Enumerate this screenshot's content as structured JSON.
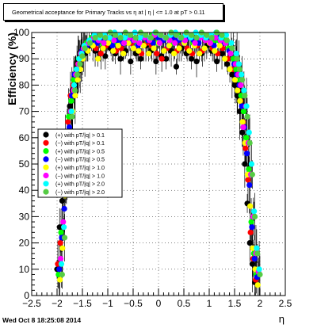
{
  "chart_data": {
    "type": "scatter",
    "title": "Geometrical acceptance for Primary Tracks vs   η at | η | <= 1.0 at pT > 0.11",
    "xlabel": "η",
    "ylabel": "Efficiency (%)",
    "xlim": [
      -2.5,
      2.5
    ],
    "ylim": [
      0,
      100
    ],
    "xticks": [
      -2.5,
      -2,
      -1.5,
      -1,
      -0.5,
      0,
      0.5,
      1,
      1.5,
      2,
      2.5
    ],
    "xtick_labels": [
      "−2.5",
      "−2",
      "−1.5",
      "−1",
      "−0.5",
      "0",
      "0.5",
      "1",
      "1.5",
      "2",
      "2.5"
    ],
    "yticks": [
      0,
      10,
      20,
      30,
      40,
      50,
      60,
      70,
      80,
      90,
      100
    ],
    "ytick_labels": [
      "0",
      "10",
      "20",
      "30",
      "40",
      "50",
      "60",
      "70",
      "80",
      "90",
      "100"
    ],
    "grid": true,
    "legend_position": "middle-left",
    "x": [
      -1.95,
      -1.9,
      -1.85,
      -1.8,
      -1.75,
      -1.7,
      -1.65,
      -1.6,
      -1.55,
      -1.5,
      -1.4,
      -1.3,
      -1.2,
      -1.1,
      -1.0,
      -0.9,
      -0.8,
      -0.7,
      -0.6,
      -0.5,
      -0.4,
      -0.3,
      -0.2,
      -0.1,
      0.0,
      0.1,
      0.2,
      0.3,
      0.4,
      0.5,
      0.6,
      0.7,
      0.8,
      0.9,
      1.0,
      1.1,
      1.2,
      1.3,
      1.4,
      1.5,
      1.55,
      1.6,
      1.65,
      1.7,
      1.75,
      1.8,
      1.85,
      1.9,
      1.95
    ],
    "series": [
      {
        "name": "(+) with pT/|q| > 0.1",
        "color": "#000000",
        "values": [
          10,
          26,
          36,
          52,
          62,
          72,
          78,
          80,
          86,
          88,
          92,
          95,
          93,
          92,
          91,
          94,
          92,
          90,
          93,
          89,
          92,
          90,
          95,
          93,
          89,
          91,
          90,
          93,
          87,
          94,
          92,
          90,
          89,
          92,
          95,
          93,
          89,
          92,
          88,
          84,
          80,
          76,
          70,
          62,
          50,
          35,
          20,
          12,
          5
        ]
      },
      {
        "name": "(−) with pT/|q| > 0.1",
        "color": "#ff0000",
        "values": [
          12,
          20,
          40,
          58,
          66,
          76,
          80,
          84,
          88,
          90,
          94,
          96,
          94,
          92,
          95,
          96,
          93,
          94,
          97,
          96,
          94,
          92,
          96,
          95,
          92,
          90,
          94,
          97,
          93,
          96,
          94,
          92,
          95,
          93,
          97,
          94,
          92,
          94,
          90,
          86,
          82,
          78,
          74,
          66,
          56,
          44,
          24,
          14,
          6
        ]
      },
      {
        "name": "(+) with pT/|q| > 0.5",
        "color": "#00ff00",
        "values": [
          8,
          24,
          44,
          56,
          68,
          74,
          82,
          86,
          90,
          92,
          96,
          98,
          97,
          96,
          98,
          97,
          96,
          98,
          99,
          97,
          96,
          98,
          97,
          99,
          96,
          97,
          98,
          96,
          99,
          97,
          98,
          96,
          97,
          99,
          98,
          96,
          97,
          98,
          94,
          90,
          86,
          82,
          76,
          70,
          60,
          48,
          28,
          16,
          8
        ]
      },
      {
        "name": "(−) with pT/|q| > 0.5",
        "color": "#0000ff",
        "values": [
          10,
          22,
          33,
          54,
          64,
          76,
          84,
          86,
          90,
          93,
          95,
          97,
          96,
          98,
          97,
          95,
          97,
          96,
          98,
          97,
          95,
          98,
          97,
          96,
          98,
          97,
          95,
          98,
          97,
          96,
          98,
          97,
          96,
          98,
          97,
          95,
          98,
          96,
          93,
          88,
          84,
          80,
          72,
          64,
          54,
          42,
          26,
          14,
          7
        ]
      },
      {
        "name": "(+) with pT/|q| > 1.0",
        "color": "#ffff00",
        "values": [
          6,
          18,
          38,
          50,
          60,
          70,
          76,
          82,
          86,
          90,
          93,
          95,
          90,
          94,
          96,
          93,
          95,
          92,
          96,
          94,
          93,
          95,
          92,
          94,
          96,
          93,
          95,
          92,
          94,
          96,
          93,
          95,
          92,
          94,
          96,
          93,
          95,
          90,
          86,
          82,
          78,
          74,
          66,
          58,
          46,
          34,
          18,
          10,
          4
        ]
      },
      {
        "name": "(−) with pT/|q| > 1.0",
        "color": "#ff00ff",
        "values": [
          14,
          28,
          46,
          60,
          70,
          78,
          84,
          88,
          92,
          94,
          96,
          98,
          97,
          96,
          98,
          97,
          99,
          96,
          98,
          97,
          96,
          98,
          97,
          99,
          96,
          98,
          97,
          96,
          98,
          97,
          99,
          96,
          98,
          97,
          96,
          98,
          97,
          96,
          92,
          88,
          84,
          80,
          64,
          72,
          58,
          46,
          30,
          16,
          9
        ]
      },
      {
        "name": "(+) with pT/|q| > 2.0",
        "color": "#00ffff",
        "values": [
          12,
          26,
          42,
          58,
          70,
          80,
          86,
          90,
          92,
          95,
          97,
          99,
          98,
          99,
          98,
          100,
          99,
          98,
          99,
          100,
          98,
          99,
          98,
          100,
          99,
          98,
          99,
          100,
          98,
          99,
          98,
          100,
          99,
          98,
          99,
          100,
          98,
          99,
          96,
          92,
          88,
          84,
          78,
          72,
          62,
          50,
          32,
          18,
          10
        ]
      },
      {
        "name": "(−) with pT/|q| > 2.0",
        "color": "#55cc44",
        "values": [
          8,
          22,
          40,
          56,
          68,
          78,
          84,
          88,
          91,
          94,
          96,
          98,
          99,
          98,
          100,
          99,
          98,
          100,
          99,
          98,
          100,
          99,
          98,
          100,
          99,
          98,
          100,
          99,
          98,
          100,
          99,
          98,
          100,
          99,
          98,
          100,
          99,
          97,
          94,
          90,
          86,
          82,
          76,
          68,
          58,
          46,
          30,
          16,
          8
        ]
      }
    ],
    "legend": [
      "(+) with pT/|q| > 0.1",
      "(−) with pT/|q| > 0.1",
      "(+) with pT/|q| > 0.5",
      "(−) with pT/|q| > 0.5",
      "(+) with pT/|q| > 1.0",
      "(−) with pT/|q| > 1.0",
      "(+) with pT/|q| > 2.0",
      "(−) with pT/|q| > 2.0"
    ]
  },
  "footer": {
    "date": "Wed Oct  8 18:25:08 2014"
  }
}
